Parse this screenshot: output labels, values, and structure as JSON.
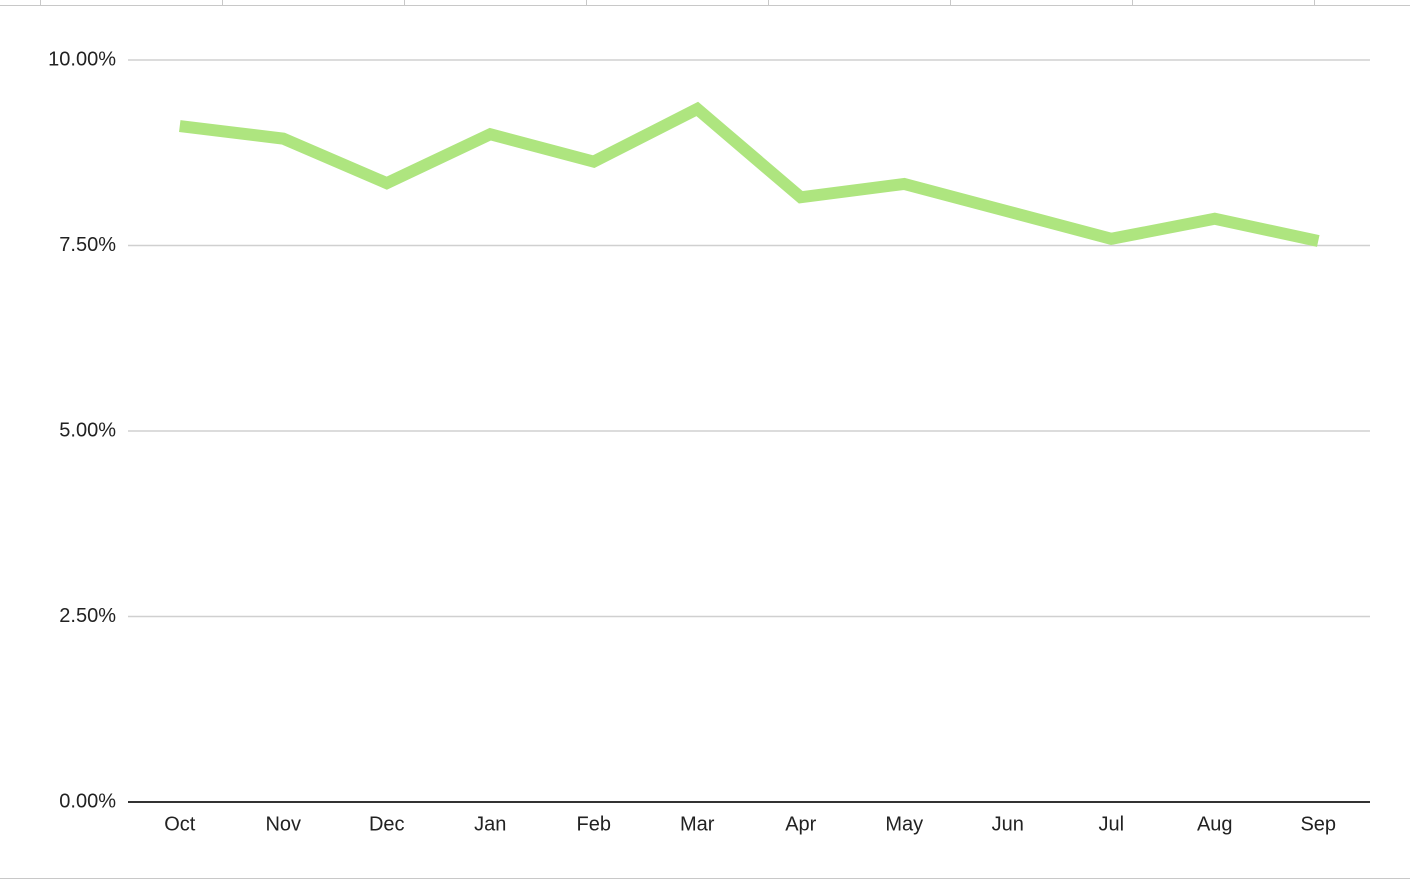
{
  "chart_data": {
    "type": "line",
    "categories": [
      "Oct",
      "Nov",
      "Dec",
      "Jan",
      "Feb",
      "Mar",
      "Apr",
      "May",
      "Jun",
      "Jul",
      "Aug",
      "Sep"
    ],
    "values": [
      9.11,
      8.94,
      8.34,
      9.0,
      8.63,
      9.34,
      8.15,
      8.33,
      7.96,
      7.59,
      7.86,
      7.56
    ],
    "color": "#aee57f",
    "ylim": [
      0,
      10
    ],
    "yticks": [
      {
        "value": 0,
        "label": "0.00%"
      },
      {
        "value": 2.5,
        "label": "2.50%"
      },
      {
        "value": 5,
        "label": "5.00%"
      },
      {
        "value": 7.5,
        "label": "7.50%"
      },
      {
        "value": 10,
        "label": "10.00%"
      }
    ],
    "grid": true
  }
}
